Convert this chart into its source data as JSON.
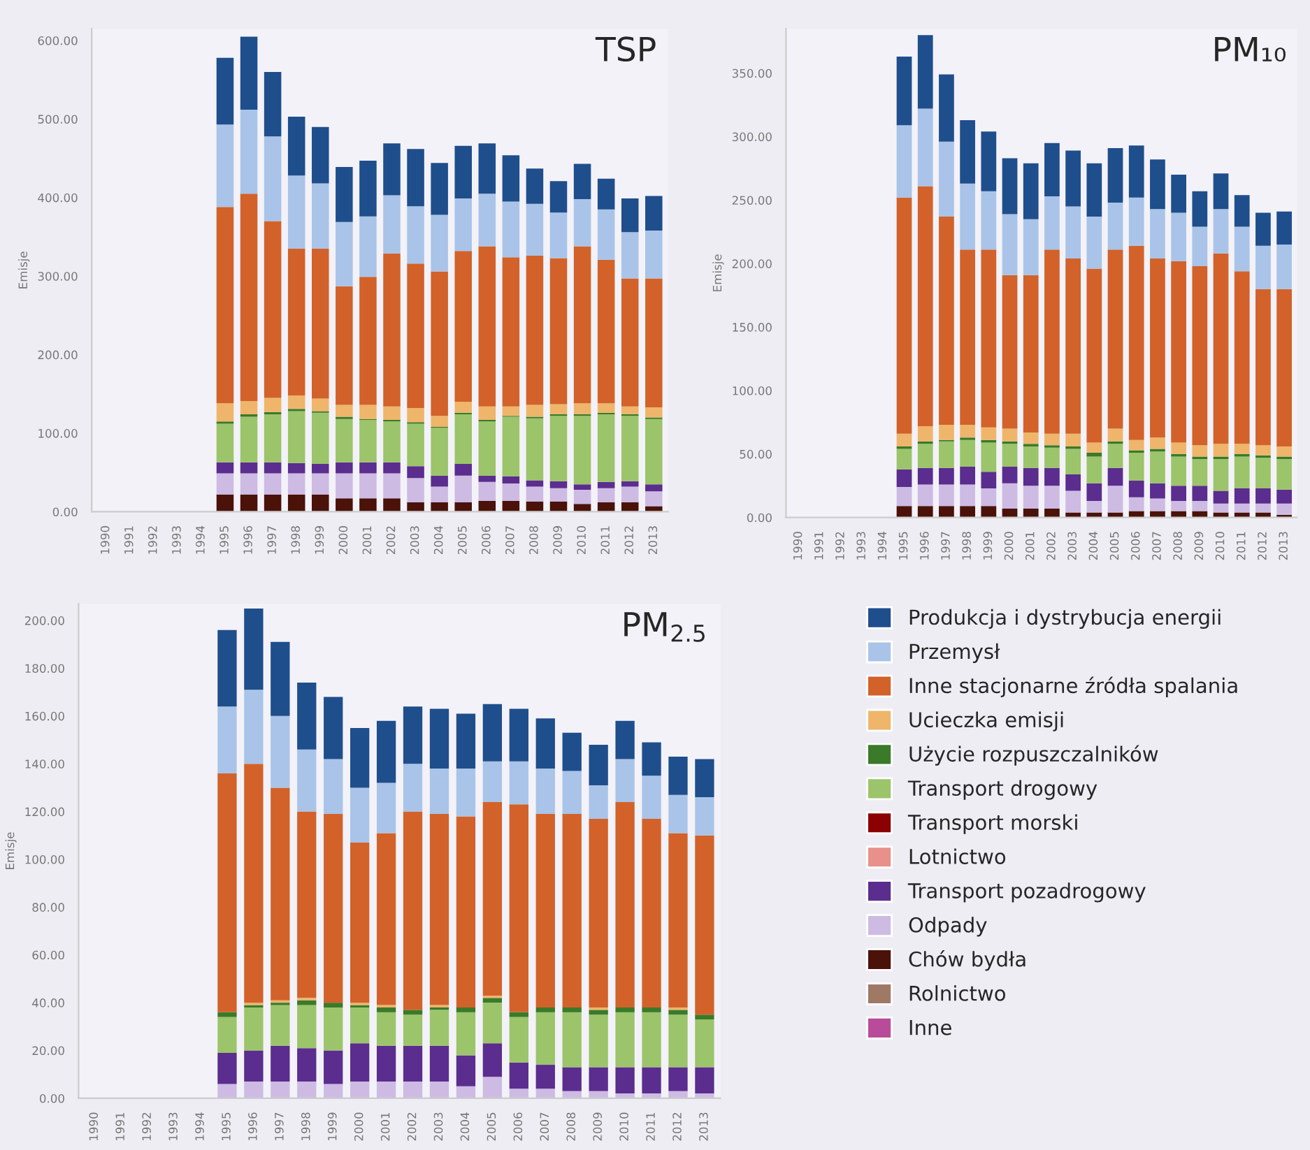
{
  "chart_data": [
    {
      "type": "bar",
      "title": "TSP",
      "ylabel": "Emisje",
      "stacked": true,
      "legend": false,
      "categories": [
        "1990",
        "1991",
        "1992",
        "1993",
        "1994",
        "1995",
        "1996",
        "1997",
        "1998",
        "1999",
        "2000",
        "2001",
        "2002",
        "2003",
        "2004",
        "2005",
        "2006",
        "2007",
        "2008",
        "2009",
        "2010",
        "2011",
        "2012",
        "2013"
      ],
      "ylim": [
        0,
        615
      ],
      "yticks": [
        {
          "value": 0,
          "label": "0.00"
        },
        {
          "value": 100,
          "label": "100.00"
        },
        {
          "value": 200,
          "label": "200.00"
        },
        {
          "value": 300,
          "label": "300.00"
        },
        {
          "value": 400,
          "label": "400.00"
        },
        {
          "value": 500,
          "label": "500.00"
        },
        {
          "value": 600,
          "label": "600.00"
        }
      ],
      "series": [
        {
          "color": "#b84c9a",
          "values": [
            null,
            null,
            null,
            null,
            null,
            0,
            0,
            0,
            0,
            0,
            0,
            0,
            0,
            0,
            0,
            0,
            0,
            0,
            0,
            0,
            0,
            0,
            0,
            0
          ]
        },
        {
          "color": "#a07866",
          "values": [
            null,
            null,
            null,
            null,
            null,
            0,
            0,
            0,
            0,
            0,
            0,
            0,
            0,
            0,
            0,
            0,
            0,
            0,
            0,
            0,
            0,
            0,
            0,
            0
          ]
        },
        {
          "color": "#4a1208",
          "values": [
            null,
            null,
            null,
            null,
            null,
            22,
            22,
            22,
            22,
            22,
            17,
            17,
            17,
            12,
            12,
            12,
            14,
            14,
            13,
            13,
            10,
            12,
            12,
            7
          ]
        },
        {
          "color": "#cdbbe4",
          "values": [
            null,
            null,
            null,
            null,
            null,
            27,
            27,
            27,
            27,
            27,
            32,
            32,
            32,
            31,
            20,
            34,
            24,
            22,
            19,
            17,
            18,
            18,
            20,
            19
          ]
        },
        {
          "color": "#5b2d8e",
          "values": [
            null,
            null,
            null,
            null,
            null,
            14,
            14,
            14,
            13,
            12,
            14,
            14,
            14,
            15,
            14,
            15,
            8,
            9,
            8,
            9,
            7,
            8,
            7,
            9
          ]
        },
        {
          "color": "#e8908a",
          "values": [
            null,
            null,
            null,
            null,
            null,
            0,
            0,
            0,
            0,
            0,
            0,
            0,
            0,
            0,
            0,
            0,
            0,
            0,
            0,
            0,
            0,
            0,
            0,
            0
          ]
        },
        {
          "color": "#8b0000",
          "values": [
            null,
            null,
            null,
            null,
            null,
            0,
            0,
            0,
            0,
            0,
            0,
            0,
            0,
            0,
            0,
            0,
            0,
            0,
            0,
            0,
            0,
            0,
            0,
            0
          ]
        },
        {
          "color": "#9cc46a",
          "values": [
            null,
            null,
            null,
            null,
            null,
            49,
            58,
            61,
            66,
            65,
            55,
            54,
            52,
            54,
            61,
            63,
            69,
            76,
            79,
            83,
            87,
            86,
            83,
            83
          ]
        },
        {
          "color": "#3a7a28",
          "values": [
            null,
            null,
            null,
            null,
            null,
            3,
            3,
            3,
            3,
            2,
            3,
            1,
            2,
            2,
            1,
            2,
            2,
            1,
            2,
            2,
            2,
            2,
            2,
            2
          ]
        },
        {
          "color": "#efb56a",
          "values": [
            null,
            null,
            null,
            null,
            null,
            23,
            17,
            18,
            17,
            16,
            15,
            18,
            17,
            18,
            14,
            14,
            17,
            12,
            15,
            13,
            14,
            12,
            10,
            13
          ]
        },
        {
          "color": "#d2622a",
          "values": [
            null,
            null,
            null,
            null,
            null,
            250,
            264,
            225,
            187,
            191,
            151,
            163,
            195,
            184,
            184,
            192,
            204,
            190,
            190,
            186,
            200,
            183,
            163,
            164
          ]
        },
        {
          "color": "#a9c4e8",
          "values": [
            null,
            null,
            null,
            null,
            null,
            105,
            107,
            108,
            93,
            83,
            82,
            77,
            74,
            73,
            72,
            67,
            67,
            71,
            66,
            58,
            60,
            64,
            59,
            61
          ]
        },
        {
          "color": "#1f4e8c",
          "values": [
            null,
            null,
            null,
            null,
            null,
            85,
            93,
            82,
            75,
            72,
            70,
            71,
            66,
            73,
            66,
            67,
            64,
            59,
            45,
            40,
            45,
            39,
            43,
            44
          ]
        }
      ]
    },
    {
      "type": "bar",
      "title": "PM₁₀",
      "ylabel": "Emisje",
      "stacked": true,
      "legend": false,
      "categories": [
        "1990",
        "1991",
        "1992",
        "1993",
        "1994",
        "1995",
        "1996",
        "1997",
        "1998",
        "1999",
        "2000",
        "2001",
        "2002",
        "2003",
        "2004",
        "2005",
        "2006",
        "2007",
        "2008",
        "2009",
        "2010",
        "2011",
        "2012",
        "2013"
      ],
      "ylim": [
        0,
        385
      ],
      "yticks": [
        {
          "value": 0,
          "label": "0.00"
        },
        {
          "value": 50,
          "label": "50.00"
        },
        {
          "value": 100,
          "label": "100.00"
        },
        {
          "value": 150,
          "label": "150.00"
        },
        {
          "value": 200,
          "label": "200.00"
        },
        {
          "value": 250,
          "label": "250.00"
        },
        {
          "value": 300,
          "label": "300.00"
        },
        {
          "value": 350,
          "label": "350.00"
        }
      ],
      "series": [
        {
          "color": "#b84c9a",
          "values": [
            null,
            null,
            null,
            null,
            null,
            0,
            0,
            0,
            0,
            0,
            0,
            0,
            0,
            0,
            0,
            0,
            0,
            0,
            0,
            0,
            0,
            0,
            0,
            0
          ]
        },
        {
          "color": "#a07866",
          "values": [
            null,
            null,
            null,
            null,
            null,
            0,
            0,
            0,
            0,
            0,
            0,
            0,
            0,
            0,
            0,
            0,
            0,
            0,
            0,
            0,
            0,
            0,
            0,
            0
          ]
        },
        {
          "color": "#4a1208",
          "values": [
            null,
            null,
            null,
            null,
            null,
            9,
            9,
            9,
            9,
            9,
            7,
            7,
            7,
            4,
            4,
            4,
            5,
            5,
            5,
            5,
            4,
            4,
            4,
            2
          ]
        },
        {
          "color": "#cdbbe4",
          "values": [
            null,
            null,
            null,
            null,
            null,
            15,
            17,
            17,
            17,
            14,
            20,
            18,
            18,
            17,
            9,
            21,
            11,
            10,
            8,
            8,
            7,
            7,
            7,
            9
          ]
        },
        {
          "color": "#5b2d8e",
          "values": [
            null,
            null,
            null,
            null,
            null,
            14,
            13,
            13,
            14,
            13,
            13,
            14,
            14,
            13,
            14,
            14,
            13,
            12,
            12,
            12,
            10,
            12,
            12,
            11
          ]
        },
        {
          "color": "#e8908a",
          "values": [
            null,
            null,
            null,
            null,
            null,
            0,
            0,
            0,
            0,
            0,
            0,
            0,
            0,
            0,
            0,
            0,
            0,
            0,
            0,
            0,
            0,
            0,
            0,
            0
          ]
        },
        {
          "color": "#8b0000",
          "values": [
            null,
            null,
            null,
            null,
            null,
            0,
            0,
            0,
            0,
            0,
            0,
            0,
            0,
            0,
            0,
            0,
            0,
            0,
            0,
            0,
            0,
            0,
            0,
            0
          ]
        },
        {
          "color": "#9cc46a",
          "values": [
            null,
            null,
            null,
            null,
            null,
            16,
            19,
            21,
            21,
            23,
            18,
            17,
            16,
            20,
            21,
            19,
            22,
            25,
            23,
            21,
            25,
            25,
            24,
            24
          ]
        },
        {
          "color": "#3a7a28",
          "values": [
            null,
            null,
            null,
            null,
            null,
            2,
            2,
            1,
            2,
            2,
            2,
            2,
            2,
            2,
            3,
            2,
            2,
            2,
            2,
            2,
            2,
            2,
            2,
            2
          ]
        },
        {
          "color": "#efb56a",
          "values": [
            null,
            null,
            null,
            null,
            null,
            10,
            12,
            12,
            10,
            10,
            10,
            9,
            9,
            10,
            8,
            10,
            8,
            9,
            9,
            9,
            10,
            8,
            8,
            8
          ]
        },
        {
          "color": "#d2622a",
          "values": [
            null,
            null,
            null,
            null,
            null,
            186,
            189,
            164,
            138,
            140,
            121,
            124,
            145,
            138,
            137,
            141,
            153,
            141,
            143,
            141,
            150,
            136,
            123,
            124
          ]
        },
        {
          "color": "#a9c4e8",
          "values": [
            null,
            null,
            null,
            null,
            null,
            57,
            61,
            59,
            52,
            46,
            48,
            44,
            42,
            41,
            41,
            37,
            38,
            39,
            38,
            31,
            35,
            35,
            34,
            35
          ]
        },
        {
          "color": "#1f4e8c",
          "values": [
            null,
            null,
            null,
            null,
            null,
            54,
            58,
            53,
            50,
            47,
            44,
            44,
            42,
            44,
            42,
            43,
            41,
            39,
            30,
            28,
            28,
            25,
            26,
            26
          ]
        }
      ]
    },
    {
      "type": "bar",
      "title": "PM$_{2.5}$",
      "ylabel": "Emisje",
      "stacked": true,
      "legend": "right",
      "categories": [
        "1990",
        "1991",
        "1992",
        "1993",
        "1994",
        "1995",
        "1996",
        "1997",
        "1998",
        "1999",
        "2000",
        "2001",
        "2002",
        "2003",
        "2004",
        "2005",
        "2006",
        "2007",
        "2008",
        "2009",
        "2010",
        "2011",
        "2012",
        "2013"
      ],
      "ylim": [
        0,
        207
      ],
      "yticks": [
        {
          "value": 0,
          "label": "0.00"
        },
        {
          "value": 20,
          "label": "20.00"
        },
        {
          "value": 40,
          "label": "40.00"
        },
        {
          "value": 60,
          "label": "60.00"
        },
        {
          "value": 80,
          "label": "80.00"
        },
        {
          "value": 100,
          "label": "100.00"
        },
        {
          "value": 120,
          "label": "120.00"
        },
        {
          "value": 140,
          "label": "140.00"
        },
        {
          "value": 160,
          "label": "160.00"
        },
        {
          "value": 180,
          "label": "180.00"
        },
        {
          "value": 200,
          "label": "200.00"
        }
      ],
      "series": [
        {
          "name": "Inne",
          "color": "#b84c9a",
          "values": [
            null,
            null,
            null,
            null,
            null,
            0,
            0,
            0,
            0,
            0,
            0,
            0,
            0,
            0,
            0,
            0,
            0,
            0,
            0,
            0,
            0,
            0,
            0,
            0
          ]
        },
        {
          "name": "Rolnictwo",
          "color": "#a07866",
          "values": [
            null,
            null,
            null,
            null,
            null,
            0,
            0,
            0,
            0,
            0,
            0,
            0,
            0,
            0,
            0,
            0,
            0,
            0,
            0,
            0,
            0,
            0,
            0,
            0
          ]
        },
        {
          "name": "Chów bydła",
          "color": "#4a1208",
          "values": [
            null,
            null,
            null,
            null,
            null,
            0,
            0,
            0,
            0,
            0,
            0,
            0,
            0,
            0,
            0,
            0,
            0,
            0,
            0,
            0,
            0,
            0,
            0,
            0
          ]
        },
        {
          "name": "Odpady",
          "color": "#cdbbe4",
          "values": [
            null,
            null,
            null,
            null,
            null,
            6,
            7,
            7,
            7,
            6,
            7,
            7,
            7,
            7,
            5,
            9,
            4,
            4,
            3,
            3,
            2,
            2,
            3,
            2
          ]
        },
        {
          "name": "Transport pozadrogowy",
          "color": "#5b2d8e",
          "values": [
            null,
            null,
            null,
            null,
            null,
            13,
            13,
            15,
            14,
            14,
            16,
            15,
            15,
            15,
            13,
            14,
            11,
            10,
            10,
            10,
            11,
            11,
            10,
            11
          ]
        },
        {
          "name": "Lotnictwo",
          "color": "#e8908a",
          "values": [
            null,
            null,
            null,
            null,
            null,
            0,
            0,
            0,
            0,
            0,
            0,
            0,
            0,
            0,
            0,
            0,
            0,
            0,
            0,
            0,
            0,
            0,
            0,
            0
          ]
        },
        {
          "name": "Transport morski",
          "color": "#8b0000",
          "values": [
            null,
            null,
            null,
            null,
            null,
            0,
            0,
            0,
            0,
            0,
            0,
            0,
            0,
            0,
            0,
            0,
            0,
            0,
            0,
            0,
            0,
            0,
            0,
            0
          ]
        },
        {
          "name": "Transport drogowy",
          "color": "#9cc46a",
          "values": [
            null,
            null,
            null,
            null,
            null,
            15,
            18,
            17,
            18,
            18,
            15,
            14,
            13,
            15,
            18,
            17,
            19,
            22,
            23,
            22,
            23,
            23,
            22,
            20
          ]
        },
        {
          "name": "Użycie rozpuszczalników",
          "color": "#3a7a28",
          "values": [
            null,
            null,
            null,
            null,
            null,
            2,
            1,
            1,
            2,
            2,
            1,
            2,
            2,
            1,
            2,
            2,
            2,
            2,
            2,
            2,
            2,
            2,
            2,
            2
          ]
        },
        {
          "name": "Ucieczka emisji",
          "color": "#efb56a",
          "values": [
            null,
            null,
            null,
            null,
            null,
            0,
            1,
            1,
            1,
            0,
            1,
            1,
            0,
            1,
            0,
            1,
            0,
            0,
            0,
            1,
            0,
            0,
            1,
            0
          ]
        },
        {
          "name": "Inne stacjonarne źródła spalania",
          "color": "#d2622a",
          "values": [
            null,
            null,
            null,
            null,
            null,
            100,
            100,
            89,
            78,
            79,
            67,
            72,
            83,
            80,
            80,
            81,
            87,
            81,
            81,
            79,
            86,
            79,
            73,
            75
          ]
        },
        {
          "name": "Przemysł",
          "color": "#a9c4e8",
          "values": [
            null,
            null,
            null,
            null,
            null,
            28,
            31,
            30,
            26,
            23,
            23,
            21,
            20,
            19,
            20,
            17,
            18,
            19,
            18,
            14,
            18,
            18,
            16,
            16
          ]
        },
        {
          "name": "Produkcja i dystrybucja energii",
          "color": "#1f4e8c",
          "values": [
            null,
            null,
            null,
            null,
            null,
            32,
            34,
            31,
            28,
            26,
            25,
            26,
            24,
            25,
            23,
            24,
            22,
            21,
            16,
            17,
            16,
            14,
            16,
            16
          ]
        }
      ]
    }
  ]
}
